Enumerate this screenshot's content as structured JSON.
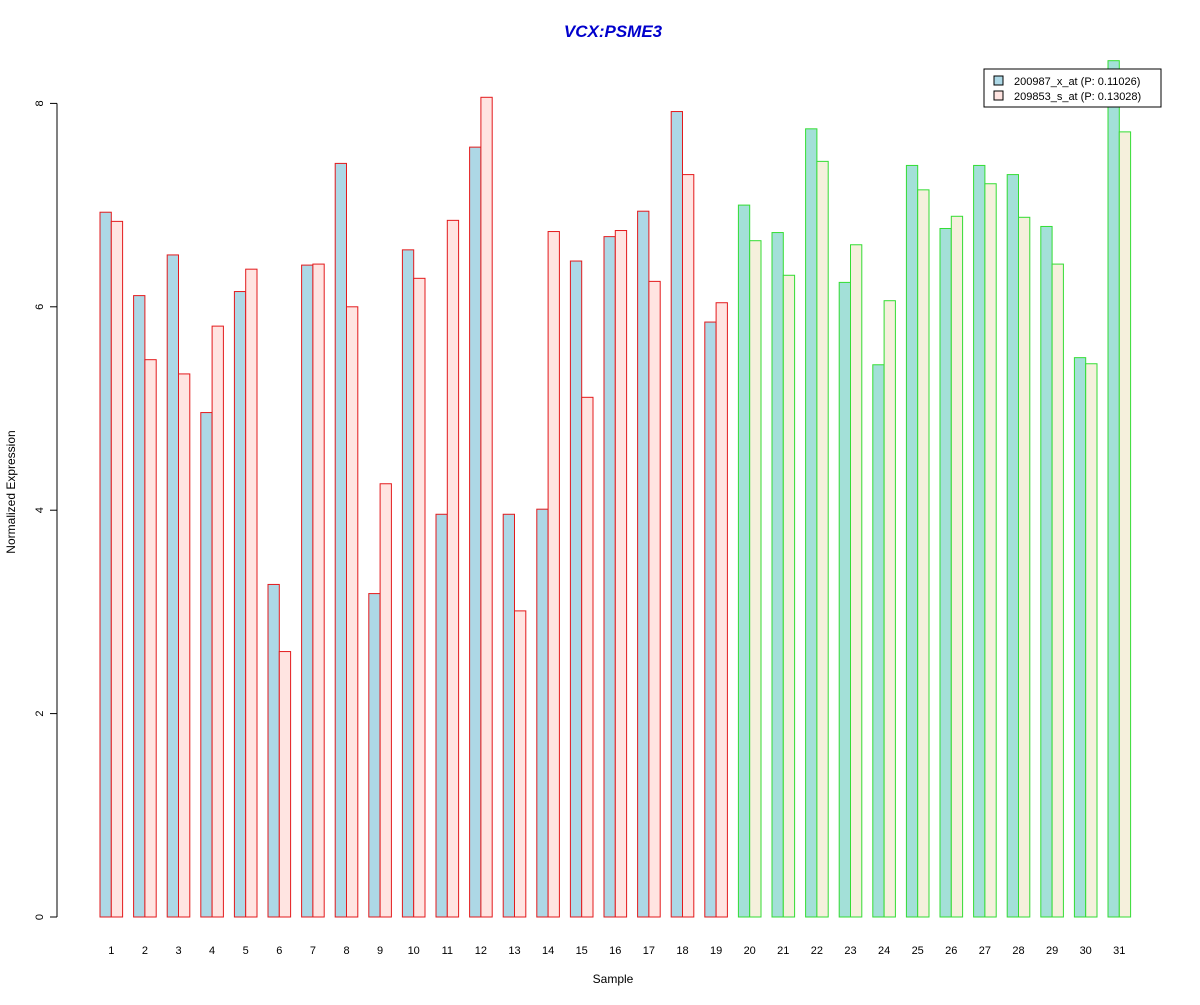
{
  "chart_data": {
    "type": "bar",
    "title": "VCX:PSME3",
    "xlabel": "Sample",
    "ylabel": "Normalized Expression",
    "ylim": [
      0,
      8.4
    ],
    "yticks": [
      0,
      2,
      4,
      6,
      8
    ],
    "grid": false,
    "legend_position": "top-right",
    "categories": [
      "1",
      "2",
      "3",
      "4",
      "5",
      "6",
      "7",
      "8",
      "9",
      "10",
      "11",
      "12",
      "13",
      "14",
      "15",
      "16",
      "17",
      "18",
      "19",
      "20",
      "21",
      "22",
      "23",
      "24",
      "25",
      "26",
      "27",
      "28",
      "29",
      "30",
      "31"
    ],
    "groups": [
      {
        "samples": [
          "1",
          "2",
          "3",
          "4",
          "5",
          "6",
          "7",
          "8",
          "9",
          "10",
          "11",
          "12",
          "13",
          "14",
          "15",
          "16",
          "17",
          "18",
          "19"
        ],
        "border_color": "#e31a1c"
      },
      {
        "samples": [
          "20",
          "21",
          "22",
          "23",
          "24",
          "25",
          "26",
          "27",
          "28",
          "29",
          "30",
          "31"
        ],
        "border_color": "#33dd33"
      }
    ],
    "series": [
      {
        "name": "200987_x_at (P: 0.11026)",
        "fill_colors": {
          "group1": "#add8e6",
          "group2": "#a3e0d8"
        },
        "values": [
          6.93,
          6.11,
          6.51,
          4.96,
          6.15,
          3.27,
          6.41,
          7.41,
          3.18,
          6.56,
          3.96,
          7.57,
          3.96,
          4.01,
          6.45,
          6.69,
          6.94,
          7.92,
          5.85,
          7.0,
          6.73,
          7.75,
          6.24,
          5.43,
          7.39,
          6.77,
          7.39,
          7.3,
          6.79,
          5.5,
          8.42
        ]
      },
      {
        "name": "209853_s_at (P: 0.13028)",
        "fill_colors": {
          "group1": "#ffe4e1",
          "group2": "#f5f0dc"
        },
        "values": [
          6.84,
          5.48,
          5.34,
          5.81,
          6.37,
          2.61,
          6.42,
          6.0,
          4.26,
          6.28,
          6.85,
          8.06,
          3.01,
          6.74,
          5.11,
          6.75,
          6.25,
          7.3,
          6.04,
          6.65,
          6.31,
          7.43,
          6.61,
          6.06,
          7.15,
          6.89,
          7.21,
          6.88,
          6.42,
          5.44,
          7.72
        ]
      }
    ]
  },
  "colors": {
    "title": "#0000cc",
    "axis": "#000000",
    "background": "#ffffff"
  }
}
